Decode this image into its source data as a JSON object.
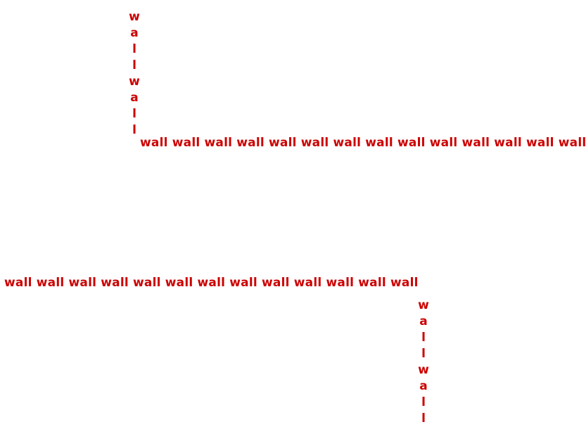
{
  "colors": {
    "wall_text": "#cc0000",
    "background": "#ffffff"
  },
  "walls": {
    "top_vertical": [
      "w",
      "a",
      "l",
      "l",
      "w",
      "a",
      "l",
      "l"
    ],
    "top_horizontal": "wall wall wall wall wall wall wall wall wall wall wall wall wall wall",
    "bottom_horizontal": "wall wall wall wall wall wall wall wall wall wall wall wall wall",
    "bottom_vertical": [
      "w",
      "a",
      "l",
      "l",
      "w",
      "a",
      "l",
      "l"
    ]
  }
}
